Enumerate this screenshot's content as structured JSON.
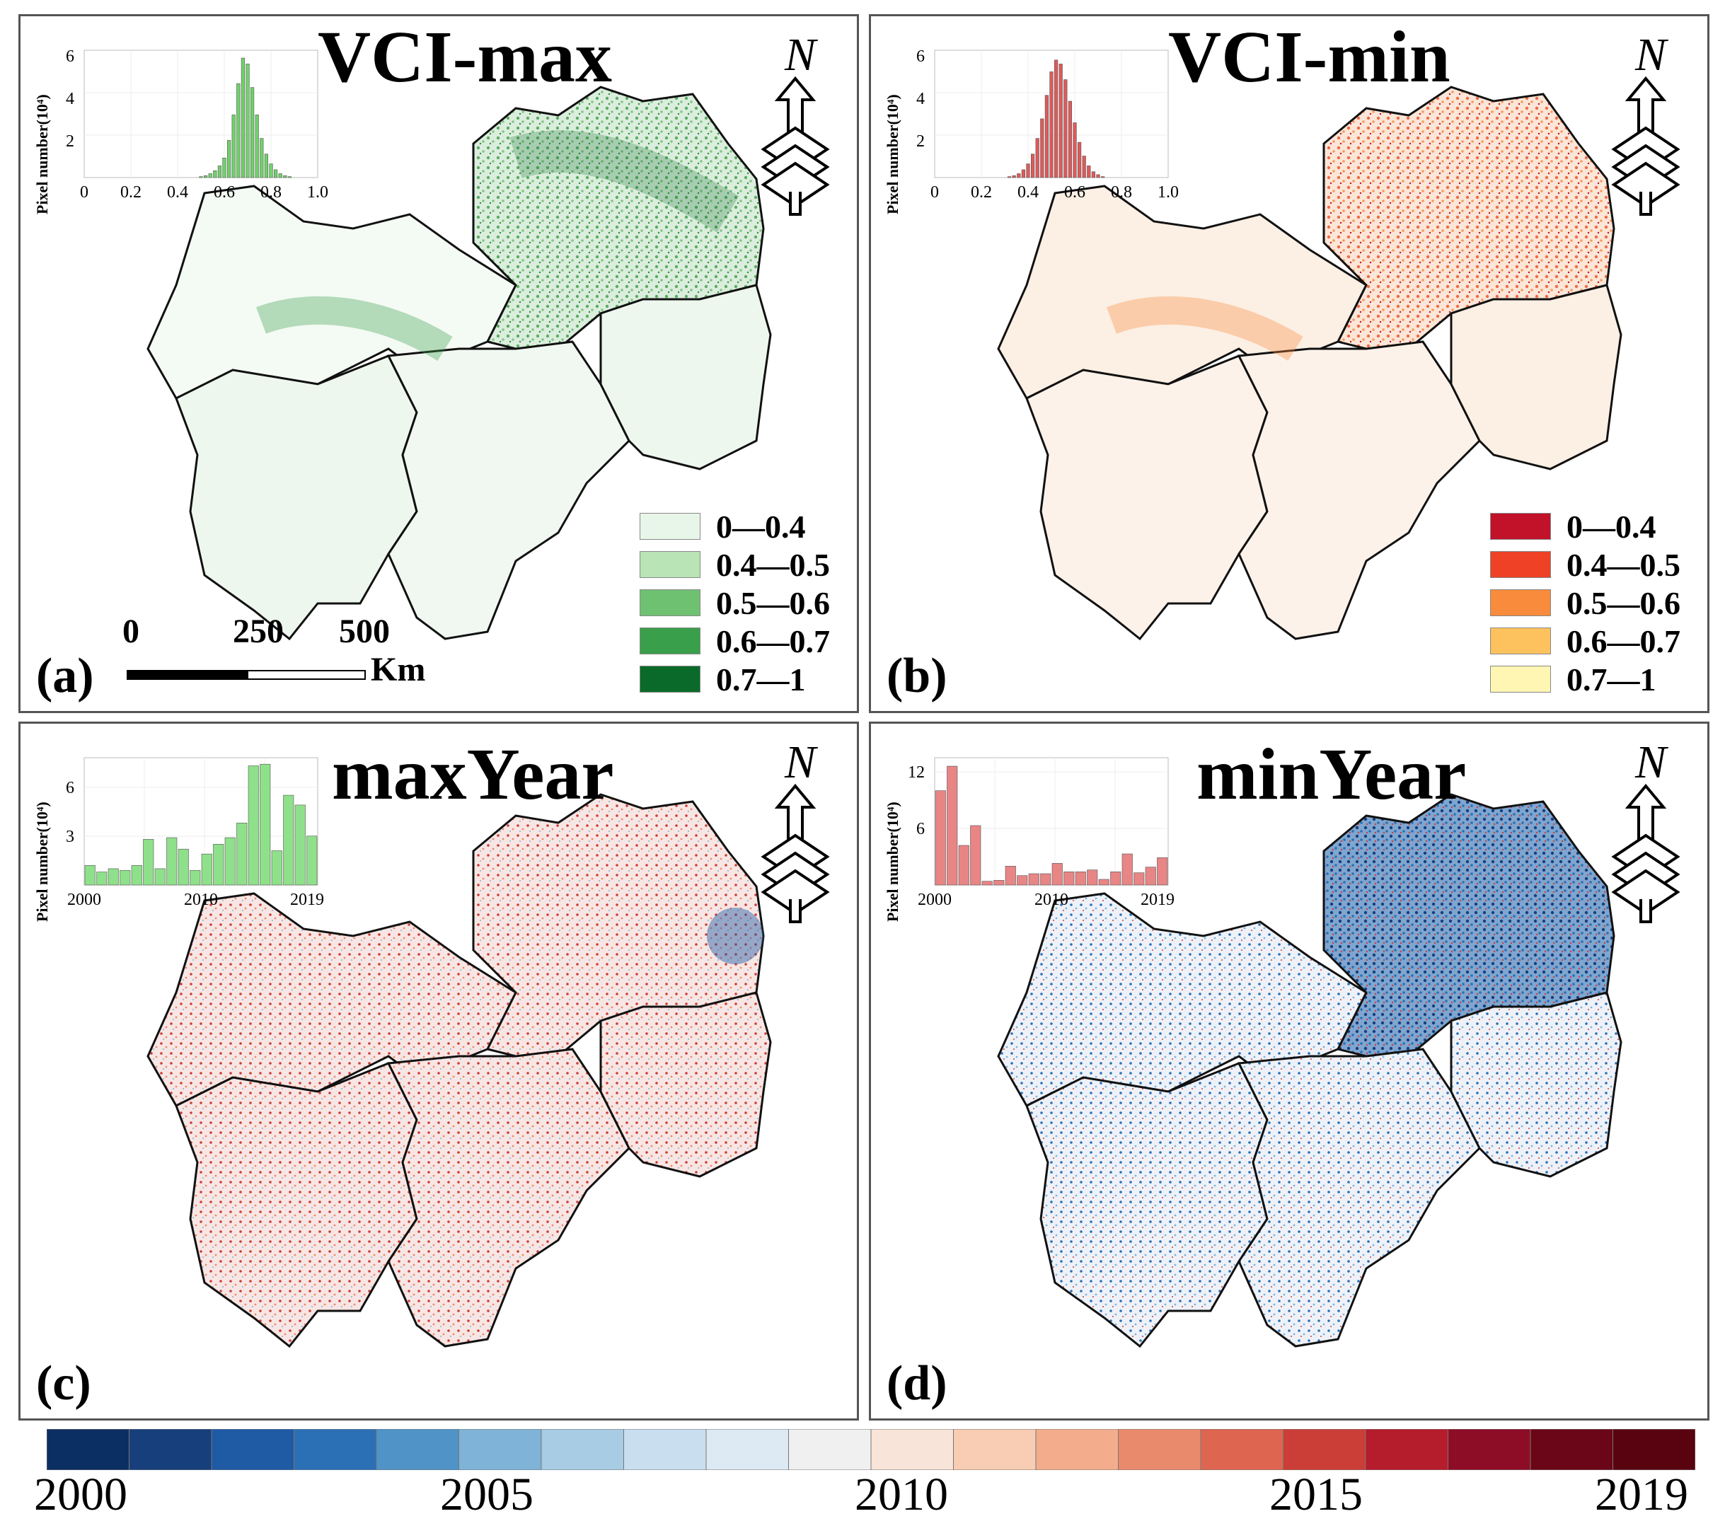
{
  "panels": {
    "a": {
      "letter": "(a)",
      "title": "VCI-max",
      "inset": {
        "ylabel": "Pixel number(10⁴)",
        "yticks": [
          "6",
          "4",
          "2"
        ],
        "xticks": [
          "0",
          "0.2",
          "0.4",
          "0.6",
          "0.8",
          "1.0"
        ]
      },
      "legend": [
        {
          "label": "0—0.4",
          "color": "#e8f5e9"
        },
        {
          "label": "0.4—0.5",
          "color": "#b9e4b5"
        },
        {
          "label": "0.5—0.6",
          "color": "#6fc172"
        },
        {
          "label": "0.6—0.7",
          "color": "#3a9f4a"
        },
        {
          "label": "0.7—1",
          "color": "#0a6a2a"
        }
      ],
      "scale": {
        "ticks": [
          "0",
          "250",
          "500"
        ],
        "unit": "Km"
      }
    },
    "b": {
      "letter": "(b)",
      "title": "VCI-min",
      "inset": {
        "ylabel": "Pixel number(10⁴)",
        "yticks": [
          "6",
          "4",
          "2"
        ],
        "xticks": [
          "0",
          "0.2",
          "0.4",
          "0.6",
          "0.8",
          "1.0"
        ]
      },
      "legend": [
        {
          "label": "0—0.4",
          "color": "#c1122a"
        },
        {
          "label": "0.4—0.5",
          "color": "#ee4125"
        },
        {
          "label": "0.5—0.6",
          "color": "#f88b3c"
        },
        {
          "label": "0.6—0.7",
          "color": "#fdc25d"
        },
        {
          "label": "0.7—1",
          "color": "#fff6b3"
        }
      ]
    },
    "c": {
      "letter": "(c)",
      "title": "maxYear",
      "inset": {
        "ylabel": "Pixel number(10⁴)",
        "yticks": [
          "6",
          "3"
        ],
        "xticks": [
          "2000",
          "2010",
          "2019"
        ]
      }
    },
    "d": {
      "letter": "(d)",
      "title": "minYear",
      "inset": {
        "ylabel": "Pixel number(10⁴)",
        "yticks": [
          "12",
          "6"
        ],
        "xticks": [
          "2000",
          "2010",
          "2019"
        ]
      }
    }
  },
  "chart_data": [
    {
      "type": "bar",
      "panel": "a",
      "title": "VCI-max histogram",
      "xlabel": "",
      "ylabel": "Pixel number(10⁴)",
      "xlim": [
        0,
        1
      ],
      "ylim": [
        0,
        6.5
      ],
      "x": [
        0.5,
        0.52,
        0.54,
        0.56,
        0.58,
        0.6,
        0.62,
        0.64,
        0.66,
        0.68,
        0.7,
        0.72,
        0.74,
        0.76,
        0.78,
        0.8,
        0.82,
        0.84,
        0.86,
        0.88
      ],
      "values": [
        0.05,
        0.1,
        0.2,
        0.35,
        0.6,
        1.0,
        1.9,
        3.2,
        4.8,
        6.1,
        5.8,
        4.6,
        3.2,
        2.0,
        1.2,
        0.7,
        0.4,
        0.2,
        0.1,
        0.05
      ],
      "color": "#6fd36a"
    },
    {
      "type": "bar",
      "panel": "b",
      "title": "VCI-min histogram",
      "xlabel": "",
      "ylabel": "Pixel number(10⁴)",
      "xlim": [
        0,
        1
      ],
      "ylim": [
        0,
        6.5
      ],
      "x": [
        0.32,
        0.34,
        0.36,
        0.38,
        0.4,
        0.42,
        0.44,
        0.46,
        0.48,
        0.5,
        0.52,
        0.54,
        0.56,
        0.58,
        0.6,
        0.62,
        0.64,
        0.66,
        0.68,
        0.7,
        0.72
      ],
      "values": [
        0.05,
        0.1,
        0.2,
        0.4,
        0.7,
        1.2,
        2.0,
        3.0,
        4.2,
        5.4,
        6.0,
        5.8,
        5.0,
        3.9,
        2.8,
        1.8,
        1.1,
        0.6,
        0.3,
        0.15,
        0.05
      ],
      "color": "#e05a5a"
    },
    {
      "type": "bar",
      "panel": "c",
      "title": "maxYear histogram",
      "xlabel": "",
      "ylabel": "Pixel number(10⁴)",
      "xlim": [
        2000,
        2019
      ],
      "ylim": [
        0,
        7.8
      ],
      "x": [
        2000,
        2001,
        2002,
        2003,
        2004,
        2005,
        2006,
        2007,
        2008,
        2009,
        2010,
        2011,
        2012,
        2013,
        2014,
        2015,
        2016,
        2017,
        2018,
        2019
      ],
      "values": [
        1.2,
        0.8,
        1.0,
        0.9,
        1.2,
        2.8,
        1.0,
        2.9,
        2.2,
        0.9,
        1.9,
        2.5,
        2.9,
        3.8,
        7.3,
        7.4,
        2.1,
        5.5,
        4.9,
        3.0
      ],
      "color": "#8fe08a"
    },
    {
      "type": "bar",
      "panel": "d",
      "title": "minYear histogram",
      "xlabel": "",
      "ylabel": "Pixel number(10⁴)",
      "xlim": [
        2000,
        2019
      ],
      "ylim": [
        0,
        13.5
      ],
      "x": [
        2000,
        2001,
        2002,
        2003,
        2004,
        2005,
        2006,
        2007,
        2008,
        2009,
        2010,
        2011,
        2012,
        2013,
        2014,
        2015,
        2016,
        2017,
        2018,
        2019
      ],
      "values": [
        10.0,
        12.6,
        4.2,
        6.3,
        0.4,
        0.5,
        2.0,
        1.0,
        1.2,
        1.2,
        2.3,
        1.4,
        1.4,
        1.6,
        0.6,
        1.4,
        3.3,
        1.3,
        1.9,
        2.9
      ],
      "color": "#e88585"
    }
  ],
  "colorbar": {
    "colors": [
      "#0c2f63",
      "#173f7c",
      "#1f5aa5",
      "#2b6fb5",
      "#4f93c7",
      "#7fb3d8",
      "#a7cce4",
      "#c9dff0",
      "#dde9f3",
      "#f0f0f0",
      "#f8e4d8",
      "#f8cdb3",
      "#f4ad8c",
      "#ea8a6d",
      "#de6550",
      "#cb3e37",
      "#b51c2c",
      "#8e0d26",
      "#6a0617",
      "#5a0310"
    ],
    "labels": [
      "2000",
      "2005",
      "2010",
      "2015",
      "2019"
    ]
  }
}
